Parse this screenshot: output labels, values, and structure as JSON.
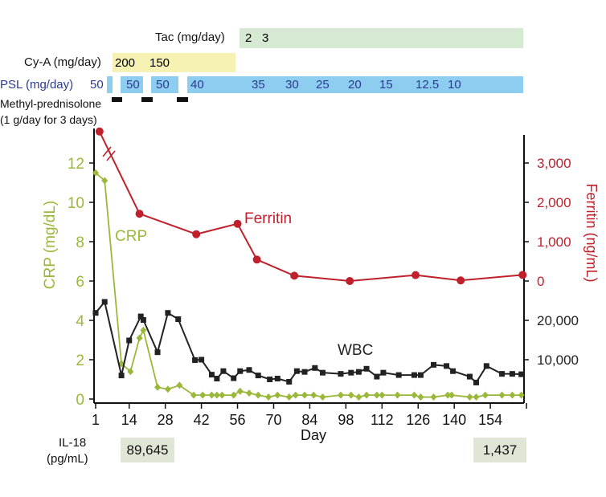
{
  "treatments": {
    "tac": {
      "label": "Tac (mg/day)",
      "doses": [
        "2",
        "3"
      ],
      "color": "#d6e9d2"
    },
    "cya": {
      "label": "Cy-A (mg/day)",
      "doses": [
        "200",
        "150"
      ],
      "color": "#f6f2b4"
    },
    "psl": {
      "label": "PSL (mg/day)",
      "doses": [
        "50",
        "50",
        "50",
        "40",
        "35",
        "30",
        "25",
        "20",
        "15",
        "12.5",
        "10"
      ],
      "color": "#8dcdf0",
      "text_color": "#2b3a8e"
    },
    "methyl": {
      "label_line1": "Methyl-prednisolone",
      "label_line2": "(1 g/day for 3 days)"
    }
  },
  "il18": {
    "label_line1": "IL-18",
    "label_line2": "(pg/mL)",
    "values": [
      "89,645",
      "1,437"
    ]
  },
  "chart_data": {
    "type": "line",
    "xlabel": "Day",
    "x_ticks": [
      1,
      14,
      28,
      42,
      56,
      70,
      84,
      98,
      112,
      126,
      140,
      154
    ],
    "xlim": [
      1,
      168
    ],
    "left_axis": {
      "label": "CRP (mg/dL)",
      "ticks": [
        0,
        2,
        4,
        6,
        8,
        10,
        12
      ],
      "ylim": [
        0,
        13.5
      ],
      "color": "#9ab83a"
    },
    "right_axis": {
      "ferritin_label": "Ferritin (ng/mL)",
      "ferritin_ticks": [
        "0",
        "1,000",
        "2,000",
        "3,000"
      ],
      "wbc_ticks": [
        "20,000",
        "10,000"
      ],
      "ferritin_color": "#c0202b"
    },
    "series": [
      {
        "name": "CRP",
        "color": "#9ab83a",
        "marker": "diamond",
        "x": [
          1,
          4.5,
          11,
          14.5,
          18,
          19.5,
          25,
          29,
          33.5,
          39,
          42.5,
          46,
          48,
          50,
          54.5,
          57,
          60.5,
          64,
          68,
          71.5,
          76,
          78.5,
          82,
          85.5,
          89,
          96,
          100,
          103,
          106,
          110,
          112,
          118,
          124.5,
          127,
          132,
          137.5,
          139,
          146,
          148.5,
          152,
          158.5,
          162.5,
          166
        ],
        "y": [
          11.5,
          11.1,
          1.8,
          1.4,
          3.1,
          3.5,
          0.6,
          0.5,
          0.7,
          0.2,
          0.2,
          0.2,
          0.2,
          0.2,
          0.2,
          0.4,
          0.3,
          0.2,
          0.1,
          0.2,
          0.1,
          0.2,
          0.2,
          0.2,
          0.1,
          0.2,
          0.2,
          0.1,
          0.2,
          0.2,
          0.2,
          0.2,
          0.2,
          0.1,
          0.1,
          0.2,
          0.2,
          0.1,
          0.1,
          0.2,
          0.2,
          0.2,
          0.2
        ]
      },
      {
        "name": "Ferritin",
        "color": "#c0202b",
        "marker": "circle",
        "axis_break": "between first and second point",
        "x": [
          2.5,
          18,
          40,
          56,
          63.5,
          78,
          99.5,
          125,
          142.5,
          166.5
        ],
        "y": [
          3800,
          1710,
          1190,
          1455,
          545,
          135,
          0,
          150,
          15,
          155
        ]
      },
      {
        "name": "WBC",
        "color": "#222222",
        "marker": "square",
        "x": [
          1,
          4.5,
          11,
          14,
          18.5,
          19.5,
          25,
          29,
          33,
          39.5,
          42,
          46,
          48,
          50.5,
          54.5,
          57,
          60.5,
          64,
          68.5,
          71.5,
          76,
          79,
          82,
          86,
          89,
          96,
          100,
          103,
          106,
          110,
          112.5,
          118.5,
          124.5,
          127,
          132,
          137,
          139.5,
          146,
          148.5,
          152.5,
          158.5,
          162.5,
          166
        ],
        "y": [
          21900,
          24700,
          6000,
          14900,
          21000,
          20100,
          11900,
          21900,
          20300,
          9900,
          10000,
          6200,
          5200,
          7100,
          5300,
          7100,
          7400,
          6000,
          5000,
          5200,
          4400,
          7100,
          6900,
          7900,
          6700,
          6400,
          6700,
          6900,
          7700,
          5700,
          6700,
          6100,
          6100,
          6100,
          8700,
          8400,
          7100,
          5700,
          4200,
          8400,
          6400,
          6400,
          6300
        ]
      }
    ]
  }
}
